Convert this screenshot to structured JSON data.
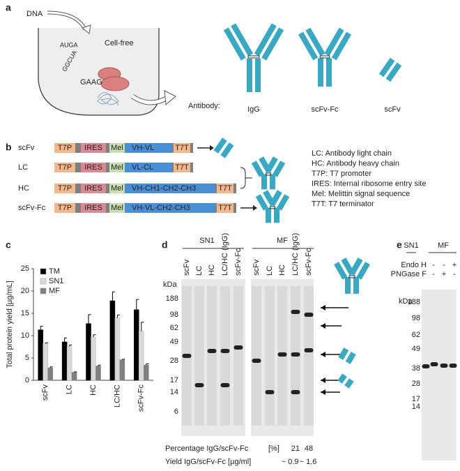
{
  "panel_labels": [
    "a",
    "b",
    "c",
    "d",
    "e"
  ],
  "panel_a": {
    "dna": "DNA",
    "cell_free": "Cell-free",
    "sequences": [
      "AUGA",
      "GGCUA",
      "GAAG"
    ],
    "antibody": "Antibody:",
    "formats": [
      "IgG",
      "scFv-Fc",
      "scFv"
    ]
  },
  "panel_b": {
    "constructs": [
      {
        "name": "scFv",
        "segments": [
          "T7P",
          "IRES",
          "Mel",
          "VH-VL",
          "T7T"
        ]
      },
      {
        "name": "LC",
        "segments": [
          "T7P",
          "IRES",
          "Mel",
          "VL-CL",
          "T7T"
        ]
      },
      {
        "name": "HC",
        "segments": [
          "T7P",
          "IRES",
          "Mel",
          "VH-CH1-CH2-CH3",
          "T7T"
        ]
      },
      {
        "name": "scFv-Fc",
        "segments": [
          "T7P",
          "IRES",
          "Mel",
          "VH-VL-CH2-CH3",
          "T7T"
        ]
      }
    ],
    "legend": [
      "LC: Antibody light chain",
      "HC: Antibody heavy chain",
      "T7P: T7 promoter",
      "IRES: Internal ribosome entry site",
      "Mel: Melittin signal sequence",
      "T7T: T7 terminator"
    ]
  },
  "chart_data": {
    "type": "bar",
    "y_label": "Total protein yield [µg/mL]",
    "categories": [
      "scFv",
      "LC",
      "HC",
      "LC/HC",
      "scFv-Fc"
    ],
    "series": [
      {
        "name": "TM",
        "color": "#000000",
        "values": [
          11.3,
          8.6,
          12.7,
          17.8,
          15.8
        ],
        "errors": [
          0.8,
          0.9,
          2.0,
          2.0,
          2.3
        ]
      },
      {
        "name": "SN1",
        "color": "#d9d9d9",
        "values": [
          8.2,
          7.6,
          9.7,
          14.0,
          11.0
        ],
        "errors": [
          0.2,
          0.3,
          0.5,
          0.6,
          2.0
        ]
      },
      {
        "name": "MF",
        "color": "#808080",
        "values": [
          2.8,
          1.8,
          3.2,
          4.6,
          3.4
        ],
        "errors": [
          0.2,
          0.1,
          0.2,
          0.1,
          0.3
        ]
      }
    ],
    "ylim": [
      0,
      25
    ],
    "yticks": [
      0,
      5,
      10,
      15,
      20,
      25
    ],
    "legend": "top-left"
  },
  "panel_d": {
    "groups": [
      "SN1",
      "MF"
    ],
    "lanes": [
      "scFv",
      "LC",
      "HC",
      "LC/HC (IgG)",
      "scFv-Fc"
    ],
    "unit": "kDa",
    "markers": [
      "188",
      "98",
      "62",
      "49",
      "28",
      "17",
      "14",
      "6"
    ],
    "percentage_label": "Percentage IgG/scFv-Fc",
    "percentage_unit": "[%]",
    "percentages": [
      "21",
      "48"
    ],
    "yield_label": "Yield IgG/scFv-Fc [µg/ml]",
    "yields": [
      "~ 0.9",
      "~ 1.6"
    ]
  },
  "panel_e": {
    "groups": [
      "SN1",
      "MF"
    ],
    "treatments": [
      {
        "name": "Endo H",
        "signs": [
          "-",
          "-",
          "+"
        ]
      },
      {
        "name": "PNGase F",
        "signs": [
          "-",
          "+",
          "-"
        ]
      }
    ],
    "unit": "kDa",
    "markers": [
      "188",
      "98",
      "62",
      "49",
      "38",
      "28",
      "17",
      "14"
    ]
  }
}
